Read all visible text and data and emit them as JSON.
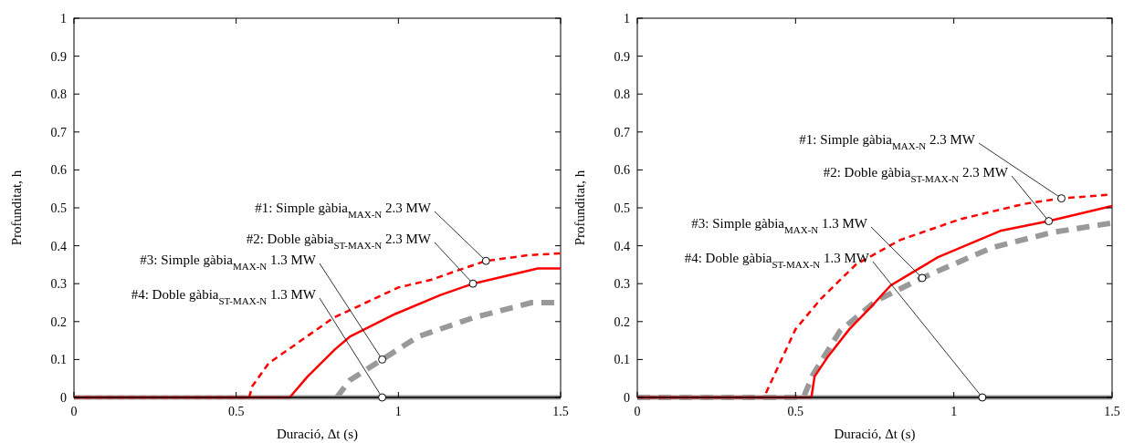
{
  "chart_data": [
    {
      "type": "line",
      "xlabel": "Duració, Δt (s)",
      "ylabel": "Profunditat, h",
      "xlim": [
        0,
        1.5
      ],
      "ylim": [
        0,
        1
      ],
      "xticks": [
        0,
        0.5,
        1,
        1.5
      ],
      "yticks": [
        0,
        0.1,
        0.2,
        0.3,
        0.4,
        0.5,
        0.6,
        0.7,
        0.8,
        0.9,
        1
      ],
      "grid": false,
      "series": [
        {
          "color": "#ff0000",
          "line_style": "dashed",
          "x": [
            0,
            0.54,
            0.55,
            0.6,
            0.7,
            0.8,
            0.9,
            1.0,
            1.1,
            1.2,
            1.27,
            1.4,
            1.5
          ],
          "values": [
            0,
            0,
            0.03,
            0.09,
            0.15,
            0.21,
            0.25,
            0.29,
            0.31,
            0.34,
            0.36,
            0.375,
            0.38
          ]
        },
        {
          "color": "#ff0000",
          "line_style": "solid",
          "x": [
            0,
            0.665,
            0.72,
            0.805,
            0.85,
            0.99,
            1.13,
            1.23,
            1.43,
            1.5
          ],
          "values": [
            0,
            0,
            0.055,
            0.127,
            0.16,
            0.22,
            0.27,
            0.3,
            0.34,
            0.34
          ]
        },
        {
          "color": "#999999",
          "line_style": "dashed",
          "x": [
            0.81,
            0.85,
            0.95,
            1.06,
            1.23,
            1.41,
            1.5
          ],
          "values": [
            0,
            0.045,
            0.1,
            0.16,
            0.21,
            0.25,
            0.25
          ]
        },
        {
          "color": "#999999",
          "line_style": "solid",
          "x": [
            0,
            1.5
          ],
          "values": [
            0,
            0
          ]
        }
      ],
      "annotations": [
        {
          "text": "#1: Simple gàbia$_{MAX-N}$ 2.3 MW",
          "x": 1.27,
          "y": 0.36
        },
        {
          "text": "#2: Doble gàbia$_{ST-MAX-N}$ 2.3 MW",
          "x": 1.23,
          "y": 0.3
        },
        {
          "text": "#3: Simple gàbia$_{MAX-N}$ 1.3 MW",
          "x": 0.95,
          "y": 0.1
        },
        {
          "text": "#4: Doble gàbia$_{ST-MAX-N}$ 1.3 MW",
          "x": 0.95,
          "y": 0
        }
      ]
    },
    {
      "type": "line",
      "xlabel": "Duració, Δt (s)",
      "ylabel": "Profunditat, h",
      "xlim": [
        0,
        1.5
      ],
      "ylim": [
        0,
        1
      ],
      "xticks": [
        0,
        0.5,
        1,
        1.5
      ],
      "yticks": [
        0,
        0.1,
        0.2,
        0.3,
        0.4,
        0.5,
        0.6,
        0.7,
        0.8,
        0.9,
        1
      ],
      "grid": false,
      "series": [
        {
          "color": "#ff0000",
          "line_style": "dashed",
          "x": [
            0,
            0.4,
            0.45,
            0.5,
            0.58,
            0.69,
            0.83,
            1.02,
            1.22,
            1.34,
            1.5
          ],
          "values": [
            0,
            0,
            0.09,
            0.18,
            0.26,
            0.35,
            0.415,
            0.47,
            0.51,
            0.525,
            0.535
          ]
        },
        {
          "color": "#ff0000",
          "line_style": "solid",
          "x": [
            0,
            0.55,
            0.56,
            0.6,
            0.67,
            0.74,
            0.8,
            0.85,
            0.95,
            1.15,
            1.3,
            1.5
          ],
          "values": [
            0,
            0,
            0.055,
            0.105,
            0.18,
            0.24,
            0.295,
            0.32,
            0.37,
            0.44,
            0.465,
            0.505
          ]
        },
        {
          "color": "#999999",
          "line_style": "dashed",
          "x": [
            0,
            0.525,
            0.555,
            0.64,
            0.755,
            0.9,
            1.12,
            1.31,
            1.5
          ],
          "values": [
            0,
            0,
            0.06,
            0.175,
            0.255,
            0.315,
            0.395,
            0.435,
            0.46
          ]
        },
        {
          "color": "#999999",
          "line_style": "solid",
          "x": [
            0,
            1.5
          ],
          "values": [
            0,
            0
          ]
        }
      ],
      "annotations": [
        {
          "text": "#1: Simple gàbia$_{MAX-N}$ 2.3 MW",
          "x": 1.34,
          "y": 0.525
        },
        {
          "text": "#2: Doble gàbia$_{ST-MAX-N}$ 2.3 MW",
          "x": 1.3,
          "y": 0.465
        },
        {
          "text": "#3: Simple gàbia$_{MAX-N}$ 1.3 MW",
          "x": 0.9,
          "y": 0.315
        },
        {
          "text": "#4: Doble gàbia$_{ST-MAX-N}$ 1.3 MW",
          "x": 1.09,
          "y": 0
        }
      ]
    }
  ]
}
